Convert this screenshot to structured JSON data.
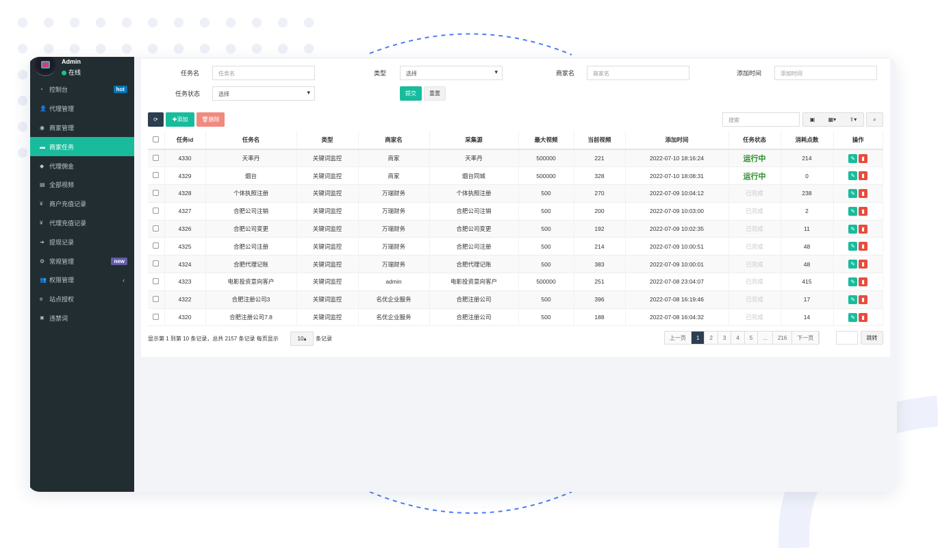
{
  "user": {
    "name": "Admin",
    "status": "在线"
  },
  "sidebar": {
    "items": [
      {
        "label": "控制台",
        "icon": "dashboard-icon",
        "badge": "hot",
        "badge_color": "#0073b7"
      },
      {
        "label": "代理管理",
        "icon": "user-plus-icon"
      },
      {
        "label": "商家管理",
        "icon": "eye-icon"
      },
      {
        "label": "商家任务",
        "icon": "card-icon",
        "active": true
      },
      {
        "label": "代理佣金",
        "icon": "diamond-icon"
      },
      {
        "label": "全部视频",
        "icon": "file-video-icon"
      },
      {
        "label": "商户充值记录",
        "icon": "yen-icon"
      },
      {
        "label": "代理充值记录",
        "icon": "yen-icon"
      },
      {
        "label": "提现记录",
        "icon": "sign-in-icon"
      },
      {
        "label": "常规管理",
        "icon": "cogs-icon",
        "badge": "new",
        "badge_color": "#605ca8"
      },
      {
        "label": "权限管理",
        "icon": "group-icon",
        "chevron": "‹"
      },
      {
        "label": "站点授权",
        "icon": "internet-icon"
      },
      {
        "label": "违禁词",
        "icon": "times-icon"
      }
    ]
  },
  "filters": {
    "task_name_label": "任务名",
    "task_name_placeholder": "任务名",
    "type_label": "类型",
    "type_value": "选择",
    "merchant_label": "商家名",
    "merchant_placeholder": "商家名",
    "time_label": "添加时间",
    "time_placeholder": "添加时间",
    "status_label": "任务状态",
    "status_value": "选择",
    "submit": "提交",
    "reset": "重置"
  },
  "toolbar": {
    "add": "添加",
    "delete": "删除",
    "search_placeholder": "搜索"
  },
  "colors": {
    "primary": "#18bc9c",
    "dark": "#2c3e50",
    "danger": "#e74c3c",
    "sidebar": "#222d32"
  },
  "table": {
    "headers": [
      "任务id",
      "任务名",
      "类型",
      "商家名",
      "采集源",
      "最大视频",
      "当前视频",
      "添加时间",
      "任务状态",
      "消耗点数",
      "操作"
    ],
    "rows": [
      [
        "4330",
        "天率丹",
        "关键词监控",
        "商家",
        "天率丹",
        "500000",
        "221",
        "2022-07-10 18:16:24",
        "运行中",
        "214"
      ],
      [
        "4329",
        "烟台",
        "关键词监控",
        "商家",
        "烟台同城",
        "500000",
        "328",
        "2022-07-10 18:08:31",
        "运行中",
        "0"
      ],
      [
        "4328",
        "个体执照注册",
        "关键词监控",
        "万瑞财务",
        "个体执照注册",
        "500",
        "270",
        "2022-07-09 10:04:12",
        "已完成",
        "238"
      ],
      [
        "4327",
        "合肥公司注销",
        "关键词监控",
        "万瑞财务",
        "合肥公司注销",
        "500",
        "200",
        "2022-07-09 10:03:00",
        "已完成",
        "2"
      ],
      [
        "4326",
        "合肥公司变更",
        "关键词监控",
        "万瑞财务",
        "合肥公司变更",
        "500",
        "192",
        "2022-07-09 10:02:35",
        "已完成",
        "11"
      ],
      [
        "4325",
        "合肥公司注册",
        "关键词监控",
        "万瑞财务",
        "合肥公司注册",
        "500",
        "214",
        "2022-07-09 10:00:51",
        "已完成",
        "48"
      ],
      [
        "4324",
        "合肥代理记账",
        "关键词监控",
        "万瑞财务",
        "合肥代理记账",
        "500",
        "383",
        "2022-07-09 10:00:01",
        "已完成",
        "48"
      ],
      [
        "4323",
        "电影投资意向客户",
        "关键词监控",
        "admin",
        "电影投资意向客户",
        "500000",
        "251",
        "2022-07-08 23:04:07",
        "已完成",
        "415"
      ],
      [
        "4322",
        "合肥注册公司3",
        "关键词监控",
        "名优企业服务",
        "合肥注册公司",
        "500",
        "396",
        "2022-07-08 16:19:46",
        "已完成",
        "17"
      ],
      [
        "4320",
        "合肥注册公司7.8",
        "关键词监控",
        "名优企业服务",
        "合肥注册公司",
        "500",
        "188",
        "2022-07-08 16:04:32",
        "已完成",
        "14"
      ]
    ]
  },
  "footer": {
    "summary": "显示第 1 到第 10 条记录，总共 2157 条记录 每页显示",
    "page_size": "10",
    "suffix": "条记录"
  },
  "pagination": {
    "prev": "上一页",
    "pages": [
      "1",
      "2",
      "3",
      "4",
      "5",
      "...",
      "216"
    ],
    "next": "下一页",
    "jump": "跳转",
    "current": "1"
  }
}
